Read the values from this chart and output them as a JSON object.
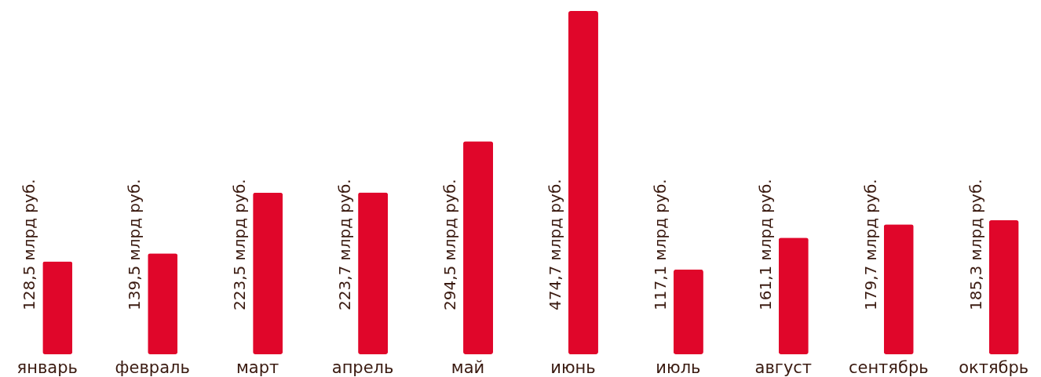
{
  "chart_data": {
    "type": "bar",
    "categories": [
      "январь",
      "февраль",
      "март",
      "апрель",
      "май",
      "июнь",
      "июль",
      "август",
      "сентябрь",
      "октябрь"
    ],
    "values": [
      128.5,
      139.5,
      223.5,
      223.7,
      294.5,
      474.7,
      117.1,
      161.1,
      179.7,
      185.3
    ],
    "value_labels": [
      "128,5 млрд руб.",
      "139,5 млрд руб.",
      "223,5 млрд руб.",
      "223,7 млрд руб.",
      "294,5 млрд руб.",
      "474,7 млрд руб.",
      "117,1 млрд руб.",
      "161,1 млрд руб.",
      "179,7 млрд руб.",
      "185,3 млрд руб."
    ],
    "color": "#e0062a",
    "data_labels": false
  }
}
